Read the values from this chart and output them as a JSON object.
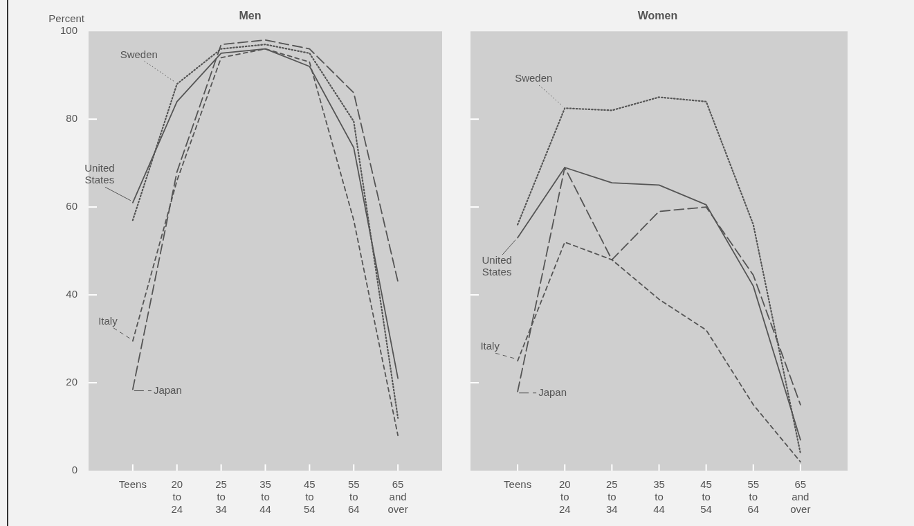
{
  "chart_data": [
    {
      "type": "line",
      "title": "Men",
      "ylabel": "Percent",
      "categories": [
        "Teens",
        "20 to 24",
        "25 to 34",
        "35 to 44",
        "45 to 54",
        "55 to 64",
        "65 and over"
      ],
      "ylim": [
        0,
        100
      ],
      "yticks": [
        0,
        20,
        40,
        60,
        80,
        100
      ],
      "grid": false,
      "marker": "none",
      "series": [
        {
          "name": "Sweden",
          "color": "#555555",
          "line_style": "dotted",
          "values": [
            57,
            88,
            96,
            97,
            95,
            79.5,
            12
          ]
        },
        {
          "name": "United States",
          "color": "#555555",
          "line_style": "solid",
          "values": [
            61,
            84,
            95,
            96,
            92,
            73.5,
            21
          ]
        },
        {
          "name": "Italy",
          "color": "#555555",
          "line_style": "dashed",
          "values": [
            29.5,
            66,
            94,
            96,
            93,
            57,
            8
          ]
        },
        {
          "name": "Japan",
          "color": "#555555",
          "line_style": "dashed",
          "values": [
            18.5,
            68,
            97,
            98,
            96,
            86,
            43
          ]
        }
      ]
    },
    {
      "type": "line",
      "title": "Women",
      "categories": [
        "Teens",
        "20 to 24",
        "25 to 34",
        "35 to 44",
        "45 to 54",
        "55 to 64",
        "65 and over"
      ],
      "ylim": [
        0,
        100
      ],
      "yticks": [
        0,
        20,
        40,
        60,
        80,
        100
      ],
      "grid": false,
      "tick_labels": "x",
      "marker": "none",
      "series": [
        {
          "name": "Sweden",
          "color": "#555555",
          "line_style": "dotted",
          "values": [
            56,
            82.5,
            82,
            85,
            84,
            56,
            4
          ]
        },
        {
          "name": "United States",
          "color": "#555555",
          "line_style": "solid",
          "values": [
            53,
            69,
            65.5,
            65,
            60.5,
            42,
            7
          ]
        },
        {
          "name": "Italy",
          "color": "#555555",
          "line_style": "dashed",
          "values": [
            25,
            52,
            48,
            39,
            32,
            15,
            2
          ]
        },
        {
          "name": "Japan",
          "color": "#555555",
          "line_style": "dashed",
          "values": [
            18,
            69,
            48,
            59,
            60,
            44.5,
            15
          ]
        }
      ]
    }
  ]
}
